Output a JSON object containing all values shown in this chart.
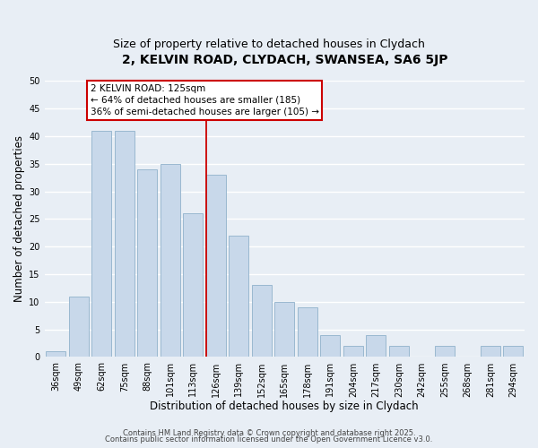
{
  "title": "2, KELVIN ROAD, CLYDACH, SWANSEA, SA6 5JP",
  "subtitle": "Size of property relative to detached houses in Clydach",
  "xlabel": "Distribution of detached houses by size in Clydach",
  "ylabel": "Number of detached properties",
  "bar_color": "#c8d8ea",
  "bar_edge_color": "#9ab8d0",
  "categories": [
    "36sqm",
    "49sqm",
    "62sqm",
    "75sqm",
    "88sqm",
    "101sqm",
    "113sqm",
    "126sqm",
    "139sqm",
    "152sqm",
    "165sqm",
    "178sqm",
    "191sqm",
    "204sqm",
    "217sqm",
    "230sqm",
    "242sqm",
    "255sqm",
    "268sqm",
    "281sqm",
    "294sqm"
  ],
  "values": [
    1,
    11,
    41,
    41,
    34,
    35,
    26,
    33,
    22,
    13,
    10,
    9,
    4,
    2,
    4,
    2,
    0,
    2,
    0,
    2,
    2
  ],
  "ylim": [
    0,
    50
  ],
  "yticks": [
    0,
    5,
    10,
    15,
    20,
    25,
    30,
    35,
    40,
    45,
    50
  ],
  "vline_color": "#cc0000",
  "annotation_line1": "2 KELVIN ROAD: 125sqm",
  "annotation_line2": "← 64% of detached houses are smaller (185)",
  "annotation_line3": "36% of semi-detached houses are larger (105) →",
  "annotation_box_color": "#ffffff",
  "annotation_box_edge": "#cc0000",
  "footer1": "Contains HM Land Registry data © Crown copyright and database right 2025.",
  "footer2": "Contains public sector information licensed under the Open Government Licence v3.0.",
  "background_color": "#e8eef5",
  "grid_color": "#ffffff",
  "title_fontsize": 10,
  "subtitle_fontsize": 9,
  "label_fontsize": 8.5,
  "tick_fontsize": 7,
  "footer_fontsize": 6,
  "annot_fontsize": 7.5
}
